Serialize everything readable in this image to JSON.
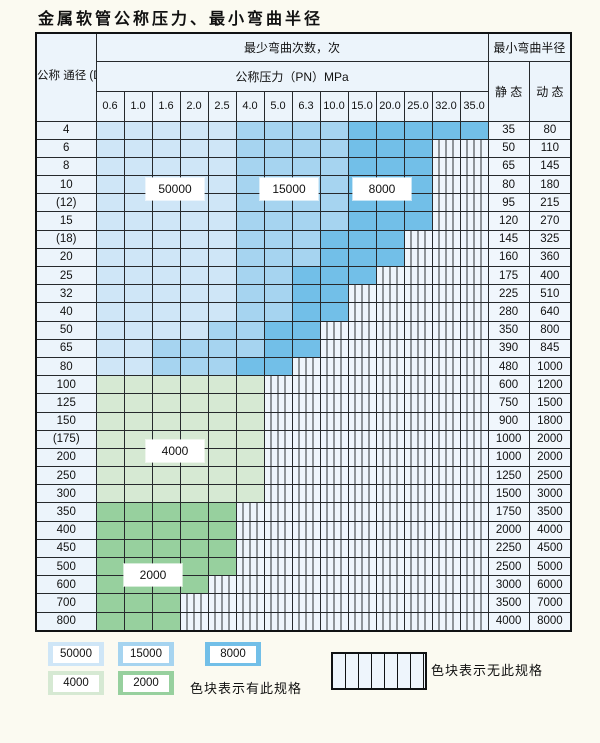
{
  "title": "金属软管公称压力、最小弯曲半径",
  "table": {
    "header": {
      "dn_header": "公称\n通径\n(DN)\nmm",
      "cycles_label": "最少弯曲次数，次",
      "pressure_label": "公称压力（PN）MPa",
      "radius_label": "最小弯曲半径",
      "static_label": "静 态",
      "dynamic_label": "动 态",
      "pressures": [
        "0.6",
        "1.0",
        "1.6",
        "2.0",
        "2.5",
        "4.0",
        "5.0",
        "6.3",
        "10.0",
        "15.0",
        "20.0",
        "25.0",
        "32.0",
        "35.0"
      ]
    },
    "cell_legend": {
      "L": "blue-light-50000-cycles",
      "M": "blue-mid-15000-cycles",
      "D": "blue-dark-8000-cycles",
      "G": "green-light-4000-cycles",
      "E": "green-mid-2000-cycles",
      "X": "striped-no-spec"
    },
    "rows": [
      {
        "dn": "4",
        "cells": "LLLLLMMMMDDDDD",
        "static": "35",
        "dynamic": "80"
      },
      {
        "dn": "6",
        "cells": "LLLLLMMMMDDDXX",
        "static": "50",
        "dynamic": "110"
      },
      {
        "dn": "8",
        "cells": "LLLLLMMMMDDDXX",
        "static": "65",
        "dynamic": "145"
      },
      {
        "dn": "10",
        "cells": "LLLLLMMMMDDDXX",
        "static": "80",
        "dynamic": "180"
      },
      {
        "dn": "(12)",
        "cells": "LLLLLMMMMDDDXX",
        "static": "95",
        "dynamic": "215"
      },
      {
        "dn": "15",
        "cells": "LLLLLMMMMDDDXX",
        "static": "120",
        "dynamic": "270"
      },
      {
        "dn": "(18)",
        "cells": "LLLLLMMMDDDXXX",
        "static": "145",
        "dynamic": "325"
      },
      {
        "dn": "20",
        "cells": "LLLLLMMMDDDXXX",
        "static": "160",
        "dynamic": "360"
      },
      {
        "dn": "25",
        "cells": "LLLLLMMDDDXXXX",
        "static": "175",
        "dynamic": "400"
      },
      {
        "dn": "32",
        "cells": "LLLLLMMDDXXXXX",
        "static": "225",
        "dynamic": "510"
      },
      {
        "dn": "40",
        "cells": "LLLLLMMDDXXXXX",
        "static": "280",
        "dynamic": "640"
      },
      {
        "dn": "50",
        "cells": "LLLLMMDDXXXXXX",
        "static": "350",
        "dynamic": "800"
      },
      {
        "dn": "65",
        "cells": "LLMMMMDDXXXXXX",
        "static": "390",
        "dynamic": "845"
      },
      {
        "dn": "80",
        "cells": "LLMMMDDXXXXXXX",
        "static": "480",
        "dynamic": "1000"
      },
      {
        "dn": "100",
        "cells": "GGGGGGXXXXXXXX",
        "static": "600",
        "dynamic": "1200"
      },
      {
        "dn": "125",
        "cells": "GGGGGGXXXXXXXX",
        "static": "750",
        "dynamic": "1500"
      },
      {
        "dn": "150",
        "cells": "GGGGGGXXXXXXXX",
        "static": "900",
        "dynamic": "1800"
      },
      {
        "dn": "(175)",
        "cells": "GGGGGGXXXXXXXX",
        "static": "1000",
        "dynamic": "2000"
      },
      {
        "dn": "200",
        "cells": "GGGGGGXXXXXXXX",
        "static": "1000",
        "dynamic": "2000"
      },
      {
        "dn": "250",
        "cells": "GGGGGGXXXXXXXX",
        "static": "1250",
        "dynamic": "2500"
      },
      {
        "dn": "300",
        "cells": "GGGGGGXXXXXXXX",
        "static": "1500",
        "dynamic": "3000"
      },
      {
        "dn": "350",
        "cells": "EEEEEXXXXXXXXX",
        "static": "1750",
        "dynamic": "3500"
      },
      {
        "dn": "400",
        "cells": "EEEEEXXXXXXXXX",
        "static": "2000",
        "dynamic": "4000"
      },
      {
        "dn": "450",
        "cells": "EEEEEXXXXXXXXX",
        "static": "2250",
        "dynamic": "4500"
      },
      {
        "dn": "500",
        "cells": "EEEEEXXXXXXXXX",
        "static": "2500",
        "dynamic": "5000"
      },
      {
        "dn": "600",
        "cells": "EEEEXXXXXXXXXX",
        "static": "3000",
        "dynamic": "6000"
      },
      {
        "dn": "700",
        "cells": "EEEXXXXXXXXXXX",
        "static": "3500",
        "dynamic": "7000"
      },
      {
        "dn": "800",
        "cells": "EEEXXXXXXXXXXX",
        "static": "4000",
        "dynamic": "8000"
      }
    ]
  },
  "overlays": {
    "b50000": "50000",
    "b15000": "15000",
    "b8000": "8000",
    "g4000": "4000",
    "g2000": "2000"
  },
  "legend": {
    "items": [
      {
        "value": "50000",
        "color_key": "blue_light"
      },
      {
        "value": "15000",
        "color_key": "blue_mid"
      },
      {
        "value": "8000",
        "color_key": "blue_dark"
      },
      {
        "value": "4000",
        "color_key": "green_light"
      },
      {
        "value": "2000",
        "color_key": "green_mid"
      }
    ],
    "has_spec_text": "色块表示有此规格",
    "no_spec_text": "色块表示无此规格"
  },
  "colors": {
    "blue_light": "#cfe6f7",
    "blue_mid": "#a6d4f0",
    "blue_dark": "#72bfe8",
    "green_light": "#d6e9d3",
    "green_mid": "#97d09e",
    "striped_bg": "#eef5fc"
  }
}
